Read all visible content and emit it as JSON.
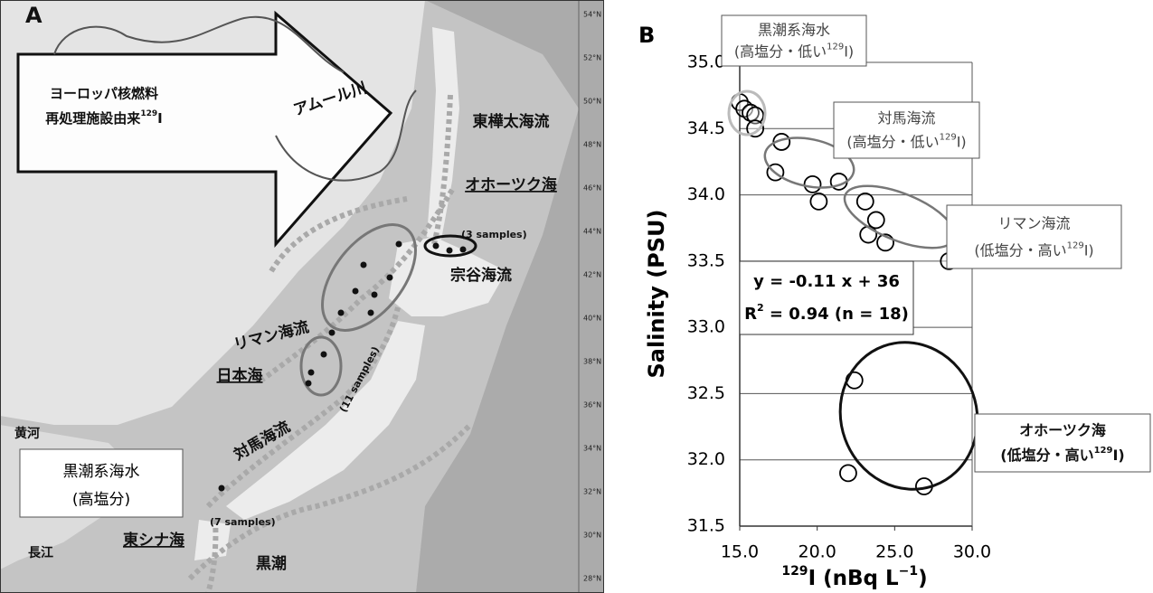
{
  "map": {
    "panel_label": "A",
    "arrow_text": {
      "line1": "ヨーロッパ核燃料",
      "line2": "再処理施設由来",
      "sup": "129",
      "tail": "I"
    },
    "labels": [
      "アムール川",
      "東樺太海流",
      "オホーツク海",
      "(3 samples)",
      "宗谷海流",
      "リマン海流",
      "日本海",
      "(11 samples)",
      "対馬海流",
      "黄河",
      "黒潮系海水",
      "(高塩分)",
      "(7 samples)",
      "長江",
      "東シナ海",
      "黒潮"
    ],
    "lat_labels": [
      "54°N",
      "52°N",
      "50°N",
      "48°N",
      "46°N",
      "44°N",
      "42°N",
      "40°N",
      "38°N",
      "36°N",
      "34°N",
      "32°N",
      "30°N",
      "28°N"
    ]
  },
  "chart_data": {
    "type": "scatter",
    "panel_label": "B",
    "y_label": "Salinity (PSU)",
    "x_label": {
      "sup": "129",
      "main": "I (nBq L",
      "exp": "−1",
      "tail": ")"
    },
    "x": [
      15.0,
      15.3,
      15.7,
      16.0,
      16.0,
      17.7,
      17.3,
      19.7,
      20.1,
      21.4,
      23.1,
      23.8,
      23.3,
      24.4,
      28.5,
      22.4,
      22.0,
      26.9
    ],
    "values": [
      34.7,
      34.65,
      34.62,
      34.6,
      34.5,
      34.4,
      34.17,
      34.08,
      33.95,
      34.1,
      33.95,
      33.81,
      33.7,
      33.64,
      33.5,
      32.6,
      31.9,
      31.8
    ],
    "color": "#000000",
    "xlim": [
      15,
      30
    ],
    "xticks": [
      {
        "value": 15,
        "label": "15.0"
      },
      {
        "value": 20,
        "label": "20.0"
      },
      {
        "value": 25,
        "label": "25.0"
      },
      {
        "value": 30,
        "label": "30.0"
      }
    ],
    "ylim": [
      31.5,
      35
    ],
    "yticks": [
      31.5,
      {
        "value": 32,
        "label": "32.0"
      },
      32.5,
      {
        "value": 33,
        "label": "33.0"
      },
      33.5,
      {
        "value": 34,
        "label": "34.0"
      },
      34.5,
      {
        "value": 35,
        "label": "35.0"
      }
    ],
    "grid": true,
    "annotations": [
      {
        "title": "黒潮系海水",
        "line": "(高塩分・低い",
        "sup": "129",
        "tail": "I)"
      },
      {
        "title": "対馬海流",
        "line": "(高塩分・低い",
        "sup": "129",
        "tail": "I)"
      },
      {
        "title": "リマン海流",
        "line": "(低塩分・高い",
        "sup": "129",
        "tail": "I)"
      },
      {
        "title": "オホーツク海",
        "line": "(低塩分・高い",
        "sup": "129",
        "tail": "I)"
      }
    ],
    "regression": {
      "equation": "y = -0.11 x + 36",
      "r": "R",
      "r_sup": "2",
      "r_tail": " = 0.94 (n = 18)"
    }
  }
}
